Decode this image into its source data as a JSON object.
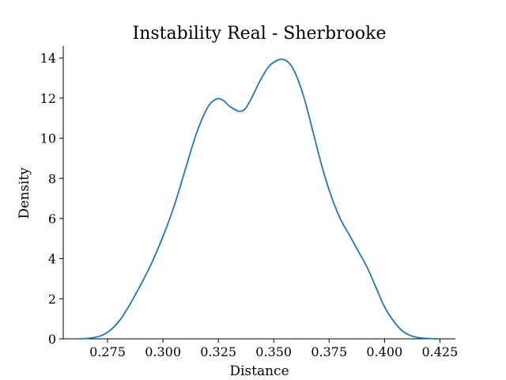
{
  "chart_data": {
    "type": "line",
    "title": "Instability Real - Sherbrooke",
    "xlabel": "Distance",
    "ylabel": "Density",
    "xlim": [
      0.255,
      0.432
    ],
    "ylim": [
      0,
      14.6
    ],
    "xticks": [
      0.275,
      0.3,
      0.325,
      0.35,
      0.375,
      0.4,
      0.425
    ],
    "xtick_labels": [
      "0.275",
      "0.300",
      "0.325",
      "0.350",
      "0.375",
      "0.400",
      "0.425"
    ],
    "yticks": [
      0,
      2,
      4,
      6,
      8,
      10,
      12,
      14
    ],
    "ytick_labels": [
      "0",
      "2",
      "4",
      "6",
      "8",
      "10",
      "12",
      "14"
    ],
    "grid": false,
    "series": [
      {
        "color": "#1f77b4",
        "x": [
          0.262,
          0.268,
          0.273,
          0.277,
          0.281,
          0.285,
          0.29,
          0.295,
          0.3,
          0.305,
          0.31,
          0.315,
          0.32,
          0.324,
          0.327,
          0.33,
          0.334,
          0.337,
          0.34,
          0.344,
          0.348,
          0.352,
          0.355,
          0.358,
          0.361,
          0.364,
          0.368,
          0.372,
          0.376,
          0.38,
          0.384,
          0.388,
          0.392,
          0.396,
          0.4,
          0.404,
          0.408,
          0.412,
          0.416,
          0.42,
          0.424
        ],
        "y": [
          0.0,
          0.05,
          0.2,
          0.5,
          1.0,
          1.7,
          2.7,
          3.8,
          5.1,
          6.6,
          8.4,
          10.2,
          11.5,
          11.95,
          11.9,
          11.6,
          11.35,
          11.45,
          12.0,
          12.9,
          13.6,
          13.9,
          13.9,
          13.6,
          12.9,
          11.9,
          10.2,
          8.5,
          7.1,
          6.0,
          5.2,
          4.4,
          3.6,
          2.6,
          1.6,
          0.9,
          0.4,
          0.15,
          0.05,
          0.02,
          0.0
        ]
      }
    ]
  }
}
